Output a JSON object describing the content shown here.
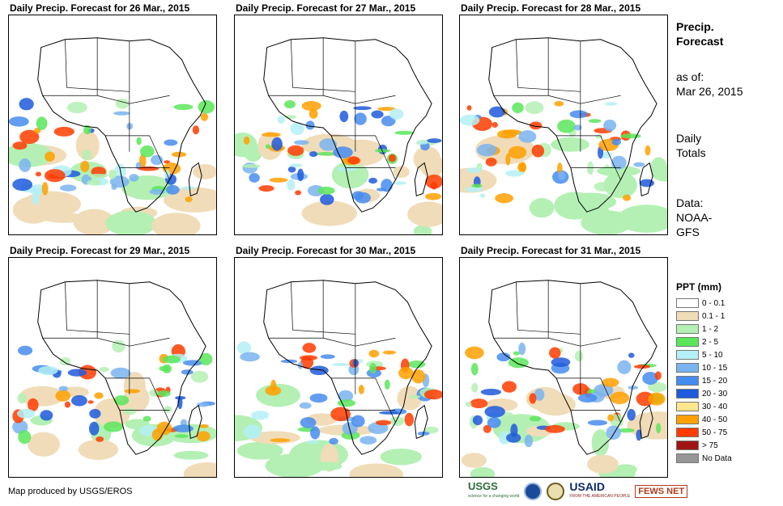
{
  "panels": [
    {
      "title": "Daily Precip. Forecast for 26 Mar., 2015"
    },
    {
      "title": "Daily Precip. Forecast for 27 Mar., 2015"
    },
    {
      "title": "Daily Precip. Forecast for 28 Mar., 2015"
    },
    {
      "title": "Daily Precip. Forecast for 29 Mar., 2015"
    },
    {
      "title": "Daily Precip. Forecast for 30 Mar., 2015"
    },
    {
      "title": "Daily Precip. Forecast for 31 Mar., 2015"
    }
  ],
  "sidebar": {
    "title_line1": "Precip.",
    "title_line2": "Forecast",
    "asof_label": "as of:",
    "asof_date": "Mar 26, 2015",
    "totals_line1": "Daily",
    "totals_line2": "Totals",
    "data_line1": "Data:",
    "data_line2": "NOAA-",
    "data_line3": "GFS"
  },
  "legend": {
    "title": "PPT (mm)",
    "items": [
      {
        "label": "0 - 0.1",
        "color": "#ffffff"
      },
      {
        "label": "0.1 - 1",
        "color": "#f0dcb8"
      },
      {
        "label": "1 - 2",
        "color": "#b4f0b4"
      },
      {
        "label": "2 - 5",
        "color": "#5ae65a"
      },
      {
        "label": "5 - 10",
        "color": "#b4f0f5"
      },
      {
        "label": "10 - 15",
        "color": "#7ab4f0"
      },
      {
        "label": "15 - 20",
        "color": "#468cf0"
      },
      {
        "label": "20 - 30",
        "color": "#1e5adc"
      },
      {
        "label": "30 - 40",
        "color": "#ffe68c"
      },
      {
        "label": "40 - 50",
        "color": "#ffa000"
      },
      {
        "label": "50 - 75",
        "color": "#ff3c00"
      },
      {
        "label": "> 75",
        "color": "#a01414"
      },
      {
        "label": "No Data",
        "color": "#969696"
      }
    ]
  },
  "credit": "Map produced by USGS/EROS",
  "logos": {
    "usgs": "USGS",
    "usgs_tag": "science for a changing world",
    "usaid": "USAID",
    "usaid_tag": "FROM THE AMERICAN PEOPLE",
    "fews": "FEWS NET"
  }
}
